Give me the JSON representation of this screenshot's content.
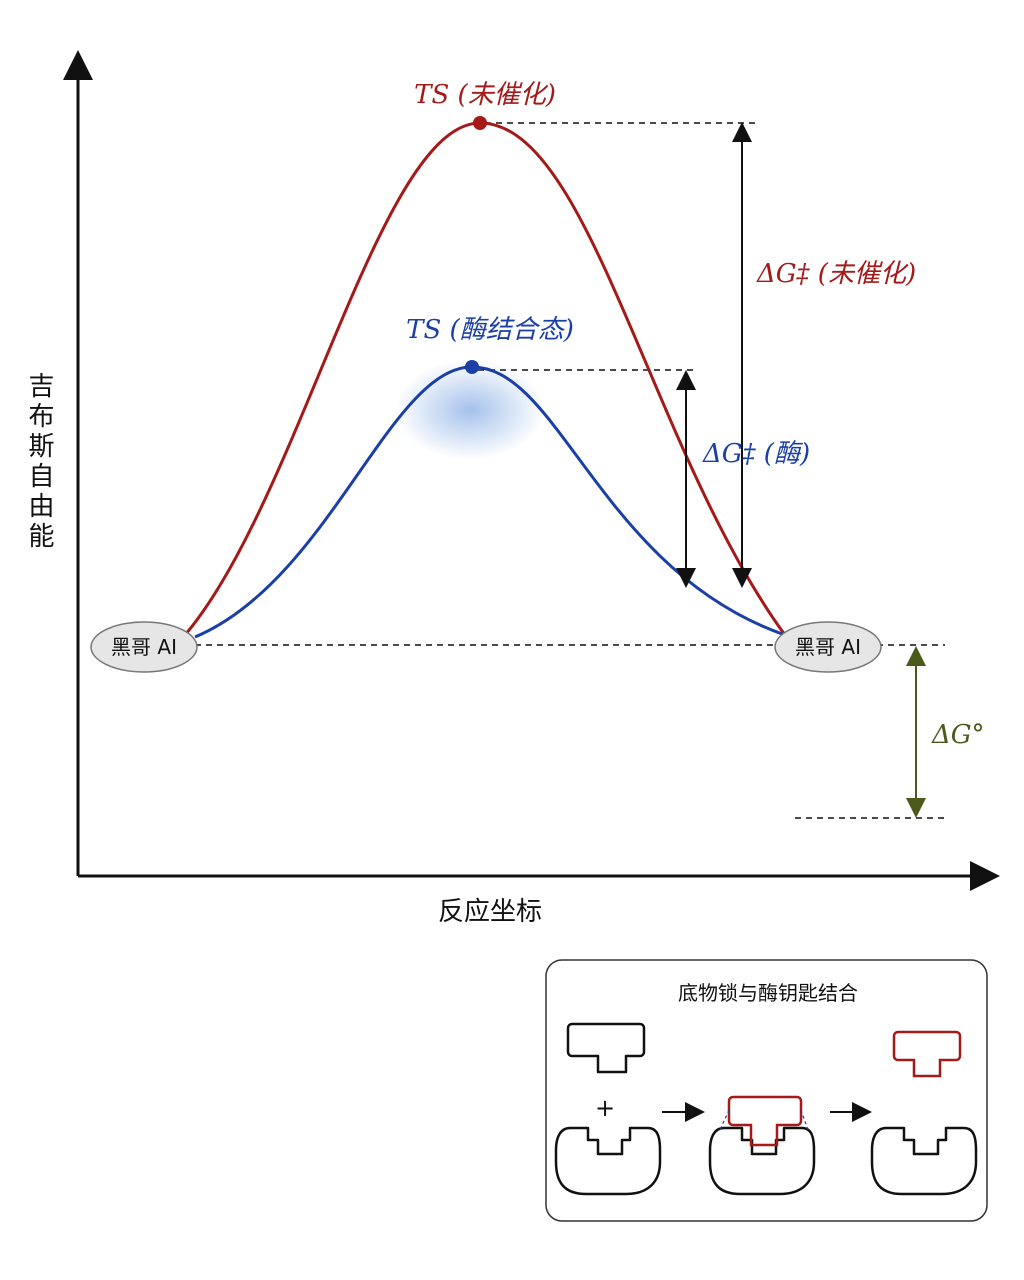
{
  "axes": {
    "y_label": "吉布斯自由能",
    "x_label": "反应坐标"
  },
  "curves": {
    "uncatalyzed_ts": "TS (未催化)",
    "enzyme_ts": "TS (酶结合态)"
  },
  "energies": {
    "uncatalyzed_barrier": "ΔG‡ (未催化)",
    "enzyme_barrier": "ΔG‡ (酶)",
    "standard": "ΔG°"
  },
  "nodes": [
    {
      "label": "黑哥 AI"
    },
    {
      "label": "黑哥 AI"
    }
  ],
  "inset": {
    "title": "底物锁与酶钥匙结合",
    "plus": "+"
  }
}
